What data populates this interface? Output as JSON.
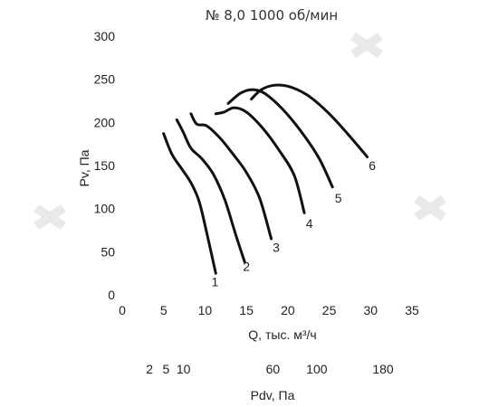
{
  "chart_data": {
    "type": "line",
    "title": "№ 8,0 1000 об/мин",
    "xlabel": "Q, тыс. м³/ч",
    "ylabel": "Pv, Па",
    "xlim": [
      0,
      35
    ],
    "ylim": [
      0,
      300
    ],
    "x_ticks": [
      "0",
      "5",
      "10",
      "15",
      "20",
      "25",
      "30",
      "35"
    ],
    "y_ticks": [
      "0",
      "50",
      "100",
      "150",
      "200",
      "250",
      "300"
    ],
    "grid": false,
    "secondary_axis": {
      "label": "Pdv, Па",
      "ticks": [
        {
          "label": "2",
          "q": 3.3
        },
        {
          "label": "5",
          "q": 5.3
        },
        {
          "label": "10",
          "q": 7.4
        },
        {
          "label": "60",
          "q": 18.2
        },
        {
          "label": "100",
          "q": 23.5
        },
        {
          "label": "180",
          "q": 31.5
        }
      ]
    },
    "series": [
      {
        "name": "1",
        "x": [
          5.0,
          6.0,
          7.2,
          8.3,
          9.3,
          10.3,
          11.3
        ],
        "y": [
          187,
          163,
          146,
          130,
          108,
          68,
          25
        ]
      },
      {
        "name": "2",
        "x": [
          6.6,
          7.4,
          8.3,
          9.6,
          11.0,
          12.4,
          13.7,
          14.8
        ],
        "y": [
          203,
          188,
          170,
          158,
          140,
          110,
          70,
          38
        ]
      },
      {
        "name": "3",
        "x": [
          8.3,
          9.0,
          10.2,
          11.8,
          13.4,
          15.0,
          16.6,
          18.0
        ],
        "y": [
          210,
          198,
          196,
          182,
          163,
          142,
          112,
          65
        ]
      },
      {
        "name": "4",
        "x": [
          11.3,
          12.3,
          13.5,
          15.0,
          17.0,
          19.0,
          20.8,
          22.0
        ],
        "y": [
          210,
          212,
          217,
          212,
          193,
          167,
          138,
          95
        ]
      },
      {
        "name": "5",
        "x": [
          12.8,
          14.3,
          15.8,
          17.3,
          19.5,
          21.8,
          23.8,
          25.4
        ],
        "y": [
          222,
          234,
          238,
          233,
          214,
          187,
          158,
          125
        ]
      },
      {
        "name": "6",
        "x": [
          15.6,
          16.8,
          18.3,
          20.0,
          22.3,
          24.8,
          27.3,
          29.6
        ],
        "y": [
          227,
          238,
          243,
          242,
          232,
          212,
          186,
          160
        ]
      }
    ],
    "series_label_points": [
      {
        "name": "1",
        "x": 11.2,
        "y": 15
      },
      {
        "name": "2",
        "x": 15.0,
        "y": 33
      },
      {
        "name": "3",
        "x": 18.6,
        "y": 55
      },
      {
        "name": "4",
        "x": 22.6,
        "y": 83
      },
      {
        "name": "5",
        "x": 26.1,
        "y": 112
      },
      {
        "name": "6",
        "x": 30.2,
        "y": 150
      }
    ]
  }
}
